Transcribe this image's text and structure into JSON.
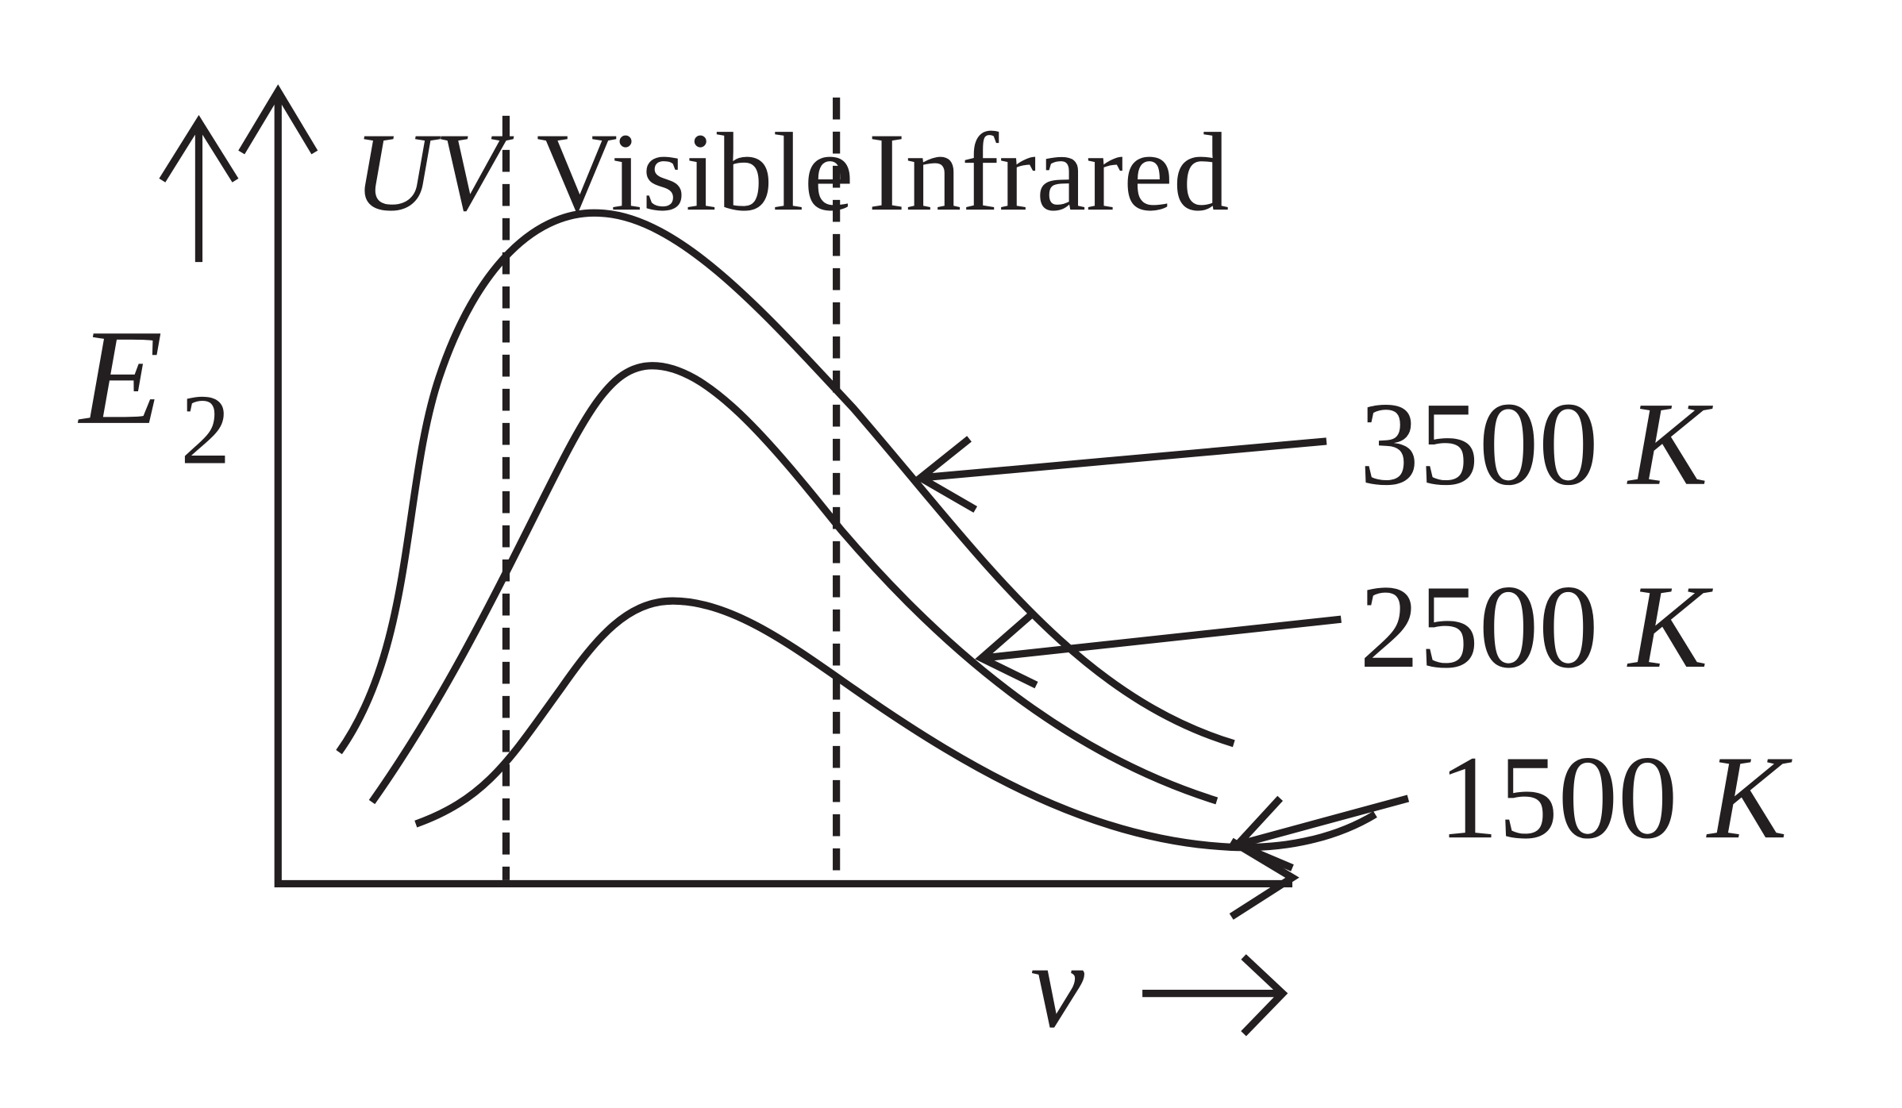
{
  "bands": [
    "UV",
    "Visible",
    "Infrared"
  ],
  "y_label": {
    "symbol": "E",
    "subscript": "2"
  },
  "x_label": "v",
  "curves": [
    {
      "temperature": "3500",
      "unit": "K"
    },
    {
      "temperature": "2500",
      "unit": "K"
    },
    {
      "temperature": "1500",
      "unit": "K"
    }
  ]
}
